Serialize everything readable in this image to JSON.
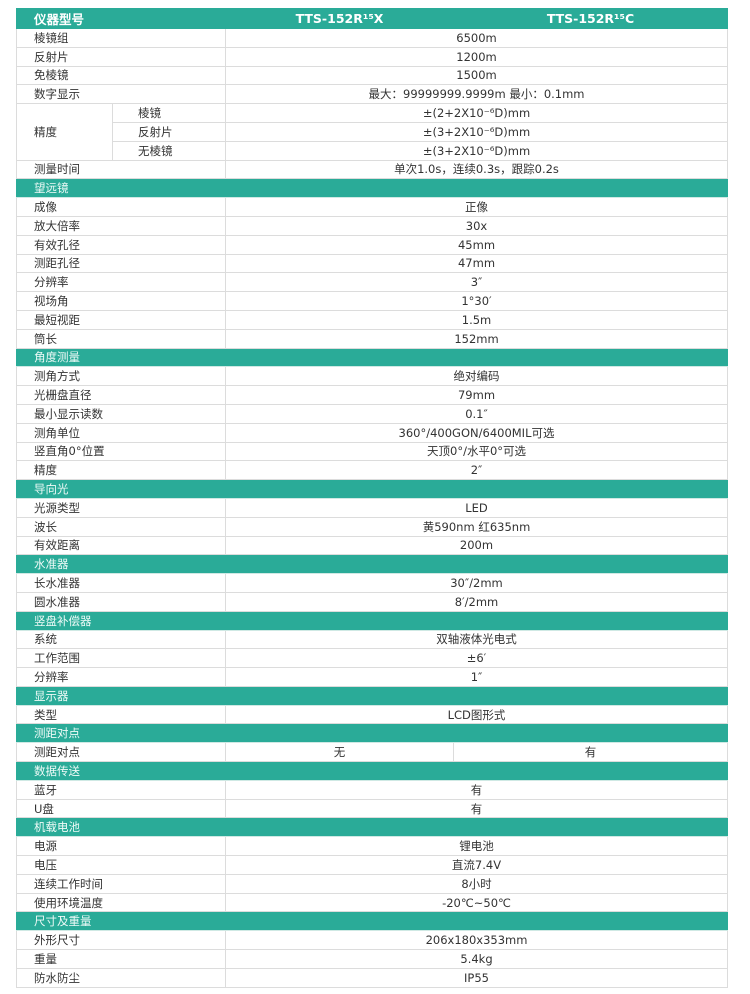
{
  "header": {
    "label": "仪器型号",
    "model_x": "TTS-152R¹⁵X",
    "model_c": "TTS-152R¹⁵C"
  },
  "color_accent": "#2aab98",
  "top_rows": [
    {
      "label": "棱镜组",
      "value": "6500m"
    },
    {
      "label": "反射片",
      "value": "1200m"
    },
    {
      "label": "免棱镜",
      "value": "1500m"
    },
    {
      "label": "数字显示",
      "value": "最大：99999999.9999m 最小：0.1mm"
    }
  ],
  "precision": {
    "label": "精度",
    "rows": [
      {
        "label": "棱镜",
        "value": "±(2+2X10⁻⁶D)mm"
      },
      {
        "label": "反射片",
        "value": "±(3+2X10⁻⁶D)mm"
      },
      {
        "label": "无棱镜",
        "value": "±(3+2X10⁻⁶D)mm"
      }
    ]
  },
  "measure_time": {
    "label": "测量时间",
    "value": "单次1.0s，连续0.3s，跟踪0.2s"
  },
  "sections": [
    {
      "title": "望远镜",
      "rows": [
        {
          "label": "成像",
          "value": "正像"
        },
        {
          "label": "放大倍率",
          "value": "30x"
        },
        {
          "label": "有效孔径",
          "value": "45mm"
        },
        {
          "label": "测距孔径",
          "value": "47mm"
        },
        {
          "label": "分辨率",
          "value": "3″"
        },
        {
          "label": "视场角",
          "value": "1°30′"
        },
        {
          "label": "最短视距",
          "value": "1.5m"
        },
        {
          "label": "筒长",
          "value": "152mm"
        }
      ]
    },
    {
      "title": "角度测量",
      "rows": [
        {
          "label": "测角方式",
          "value": "绝对编码"
        },
        {
          "label": "光栅盘直径",
          "value": "79mm"
        },
        {
          "label": "最小显示读数",
          "value": "0.1″"
        },
        {
          "label": "测角单位",
          "value": "360°/400GON/6400MIL可选"
        },
        {
          "label": "竖直角0°位置",
          "value": "天顶0°/水平0°可选"
        },
        {
          "label": "精度",
          "value": "2″"
        }
      ]
    },
    {
      "title": "导向光",
      "rows": [
        {
          "label": "光源类型",
          "value": "LED"
        },
        {
          "label": "波长",
          "value": "黄590nm 红635nm"
        },
        {
          "label": "有效距离",
          "value": "200m"
        }
      ]
    },
    {
      "title": "水准器",
      "rows": [
        {
          "label": "长水准器",
          "value": "30″/2mm"
        },
        {
          "label": "圆水准器",
          "value": "8′/2mm"
        }
      ]
    },
    {
      "title": "竖盘补偿器",
      "rows": [
        {
          "label": "系统",
          "value": "双轴液体光电式"
        },
        {
          "label": "工作范围",
          "value": "±6′"
        },
        {
          "label": "分辨率",
          "value": "1″"
        }
      ]
    },
    {
      "title": "显示器",
      "rows": [
        {
          "label": "类型",
          "value": "LCD图形式"
        }
      ]
    },
    {
      "title": "测距对点",
      "rows": [
        {
          "label": "测距对点",
          "value_x": "无",
          "value_c": "有"
        }
      ]
    },
    {
      "title": "数据传送",
      "rows": [
        {
          "label": "蓝牙",
          "value": "有"
        },
        {
          "label": "U盘",
          "value": "有"
        }
      ]
    },
    {
      "title": "机载电池",
      "rows": [
        {
          "label": "电源",
          "value": "锂电池"
        },
        {
          "label": "电压",
          "value": "直流7.4V"
        },
        {
          "label": "连续工作时间",
          "value": "8小时"
        },
        {
          "label": "使用环境温度",
          "value": "-20℃~50℃"
        }
      ]
    },
    {
      "title": "尺寸及重量",
      "rows": [
        {
          "label": "外形尺寸",
          "value": "206x180x353mm"
        },
        {
          "label": "重量",
          "value": "5.4kg"
        },
        {
          "label": "防水防尘",
          "value": "IP55"
        }
      ]
    }
  ]
}
